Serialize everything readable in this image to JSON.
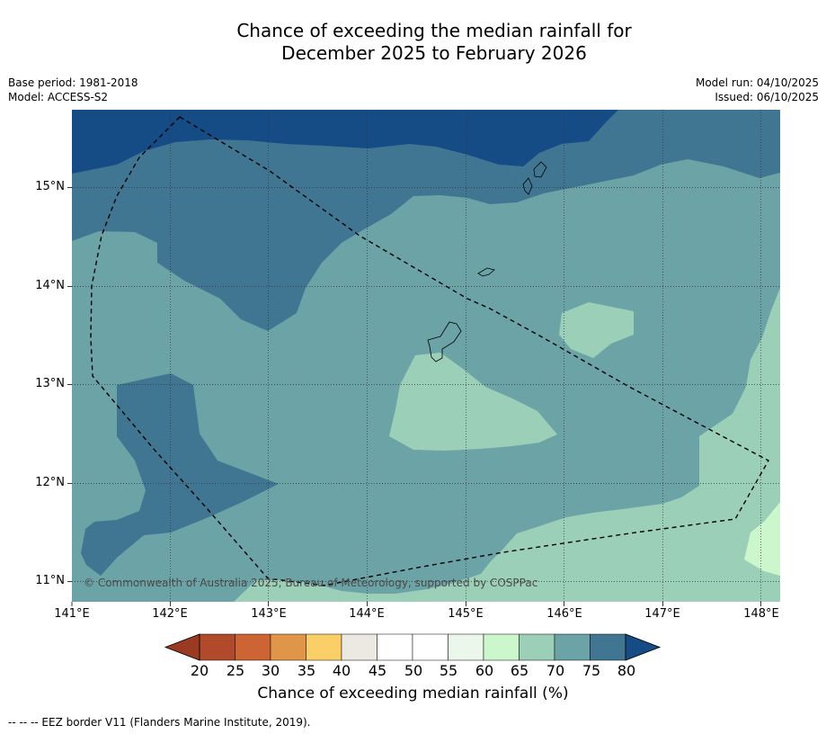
{
  "title": {
    "line1": "Chance of exceeding the median rainfall for",
    "line2": "December 2025 to February 2026"
  },
  "meta": {
    "base_period": "Base period: 1981-2018",
    "model": "Model: ACCESS-S2",
    "model_run": "Model run: 04/10/2025",
    "issued": "Issued: 06/10/2025"
  },
  "axes": {
    "x_ticks": [
      "141°E",
      "142°E",
      "143°E",
      "144°E",
      "145°E",
      "146°E",
      "147°E",
      "148°E"
    ],
    "y_ticks": [
      "15°N",
      "14°N",
      "13°N",
      "12°N",
      "11°N"
    ]
  },
  "map": {
    "copyright": "© Commonwealth of Australia 2025, Bureau of Meteorology, supported by COSPPac",
    "region": "Guam and Northern Mariana Islands",
    "colors": {
      "band_60_65": "#ccf7cc",
      "band_65_70": "#9ccfb7",
      "band_70_75": "#6ca3a6",
      "band_75_80": "#417693",
      "band_80_plus": "#154c85"
    }
  },
  "colorbar": {
    "title": "Chance of exceeding median rainfall (%)",
    "labels": [
      "20",
      "25",
      "30",
      "35",
      "40",
      "45",
      "50",
      "55",
      "60",
      "65",
      "70",
      "75",
      "80"
    ],
    "colors": [
      "#b14a2a",
      "#cc6434",
      "#e19548",
      "#fbcf68",
      "#ece8e2",
      "#ffffff",
      "#ffffff",
      "#eaf7ea",
      "#ccf7cc",
      "#9ccfb7",
      "#6ca3a6",
      "#417693"
    ],
    "low_extend_color": "#9b3a22",
    "high_extend_color": "#154c85"
  },
  "legend": {
    "eez": "--  --  -- EEZ border V11 (Flanders Marine Institute, 2019)."
  }
}
